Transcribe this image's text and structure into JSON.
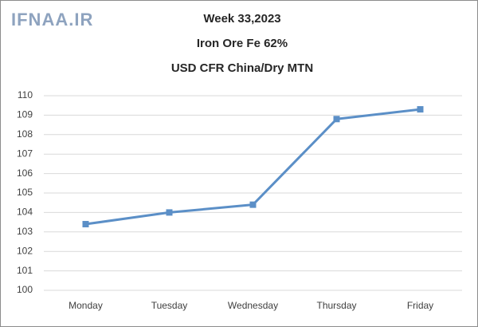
{
  "chart_data": {
    "type": "line",
    "watermark": "IFNAA.IR",
    "title": [
      "Week 33,2023",
      "Iron Ore Fe 62%",
      "USD CFR China/Dry MTN"
    ],
    "categories": [
      "Monday",
      "Tuesday",
      "Wednesday",
      "Thursday",
      "Friday"
    ],
    "values": [
      103.4,
      104.0,
      104.4,
      108.8,
      109.3
    ],
    "color": "#5b8fc7",
    "ylim": [
      100,
      110
    ],
    "yticks": [
      100,
      101,
      102,
      103,
      104,
      105,
      106,
      107,
      108,
      109,
      110
    ],
    "grid": true
  }
}
